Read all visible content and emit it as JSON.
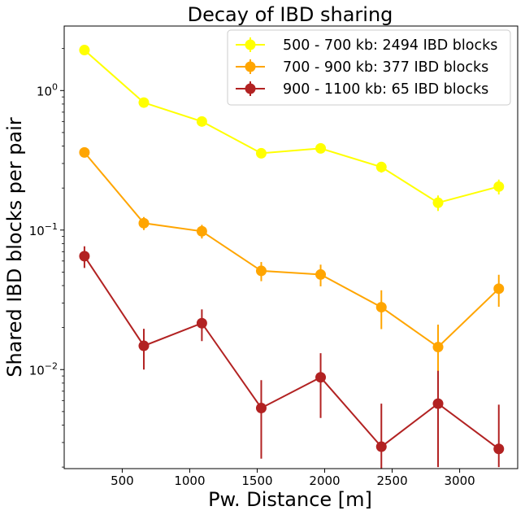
{
  "chart_data": {
    "type": "line",
    "title": "Decay of IBD sharing",
    "xlabel": "Pw. Distance [m]",
    "ylabel": "Shared IBD blocks per pair",
    "xlim": [
      70,
      3430
    ],
    "ylim": [
      0.00195,
      2.9
    ],
    "yscale": "log",
    "xticks": [
      500,
      1000,
      1500,
      2000,
      2500,
      3000
    ],
    "xtick_labels": [
      "500",
      "1000",
      "1500",
      "2000",
      "2500",
      "3000"
    ],
    "yticks": [
      {
        "value": 0.01,
        "base": "10",
        "exp": "−2"
      },
      {
        "value": 0.1,
        "base": "10",
        "exp": "−1"
      },
      {
        "value": 1,
        "base": "10",
        "exp": "0"
      }
    ],
    "legend_position": "top-right",
    "grid": false,
    "series": [
      {
        "name": "500 - 700 kb: 2494 IBD blocks",
        "color": "#ffff00",
        "x": [
          220,
          660,
          1090,
          1530,
          1970,
          2420,
          2840,
          3290
        ],
        "y": [
          1.95,
          0.82,
          0.6,
          0.355,
          0.385,
          0.283,
          0.157,
          0.205
        ],
        "err_low": [
          0.07,
          0.05,
          0.04,
          0.025,
          0.03,
          0.025,
          0.02,
          0.025
        ],
        "err_high": [
          0.07,
          0.05,
          0.04,
          0.025,
          0.03,
          0.025,
          0.02,
          0.025
        ]
      },
      {
        "name": "700 - 900 kb: 377 IBD blocks",
        "color": "#ffa500",
        "x": [
          220,
          660,
          1090,
          1530,
          1970,
          2420,
          2840,
          3290
        ],
        "y": [
          0.36,
          0.112,
          0.098,
          0.051,
          0.048,
          0.028,
          0.0145,
          0.038
        ],
        "err_low": [
          0.025,
          0.012,
          0.011,
          0.008,
          0.0085,
          0.0085,
          0.006,
          0.0098
        ],
        "err_high": [
          0.025,
          0.012,
          0.011,
          0.008,
          0.0085,
          0.009,
          0.0065,
          0.0098
        ]
      },
      {
        "name": "900 - 1100 kb: 65 IBD blocks",
        "color": "#b22222",
        "x": [
          220,
          660,
          1090,
          1530,
          1970,
          2420,
          2840,
          3290
        ],
        "y": [
          0.065,
          0.0148,
          0.0215,
          0.0053,
          0.0088,
          0.0028,
          0.0057,
          0.0027
        ],
        "err_low": [
          0.0115,
          0.0048,
          0.0055,
          0.003,
          0.0043,
          0.0009,
          0.0037,
          0.0007
        ],
        "err_high": [
          0.0115,
          0.0048,
          0.0055,
          0.0031,
          0.0043,
          0.0029,
          0.0041,
          0.0029
        ]
      }
    ]
  }
}
